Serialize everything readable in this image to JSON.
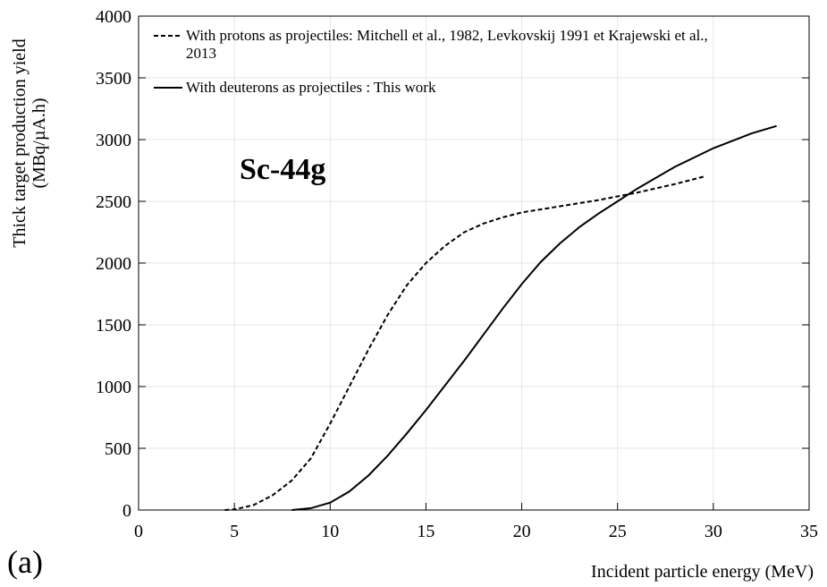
{
  "chart_data": {
    "type": "line",
    "y_label": [
      "Thick target production yield",
      "(MBq/µA.h)"
    ],
    "x_label": "Incident particle energy (MeV)",
    "annotation": "Sc-44g",
    "panel_label": "(a)",
    "xlim": [
      0,
      35
    ],
    "xticks": [
      0,
      5,
      10,
      15,
      20,
      25,
      30,
      35
    ],
    "ylim": [
      0,
      4000
    ],
    "yticks": [
      0,
      500,
      1000,
      1500,
      2000,
      2500,
      3000,
      3500,
      4000
    ],
    "grid": true,
    "series": [
      {
        "name": "With protons as projectiles: Mitchell et al., 1982, Levkovskij 1991 et Krajewski et al., 2013",
        "color": "#000000",
        "dash": true,
        "x": [
          4.5,
          5,
          6,
          7,
          8,
          9,
          10,
          11,
          12,
          13,
          14,
          15,
          16,
          17,
          18,
          19,
          20,
          22,
          24,
          26,
          28,
          29.5
        ],
        "values": [
          0,
          5,
          40,
          120,
          240,
          420,
          700,
          1000,
          1300,
          1580,
          1820,
          2000,
          2140,
          2250,
          2320,
          2370,
          2410,
          2460,
          2510,
          2570,
          2640,
          2700
        ]
      },
      {
        "name": "With deuterons as projectiles : This work",
        "color": "#000000",
        "dash": false,
        "x": [
          8,
          9,
          10,
          11,
          12,
          13,
          14,
          15,
          16,
          17,
          18,
          19,
          20,
          21,
          22,
          23,
          24,
          25,
          26,
          27,
          28,
          30,
          32,
          33.3
        ],
        "values": [
          0,
          15,
          60,
          150,
          280,
          440,
          620,
          810,
          1010,
          1210,
          1420,
          1630,
          1830,
          2010,
          2160,
          2290,
          2400,
          2500,
          2600,
          2690,
          2780,
          2930,
          3050,
          3110
        ]
      }
    ]
  }
}
